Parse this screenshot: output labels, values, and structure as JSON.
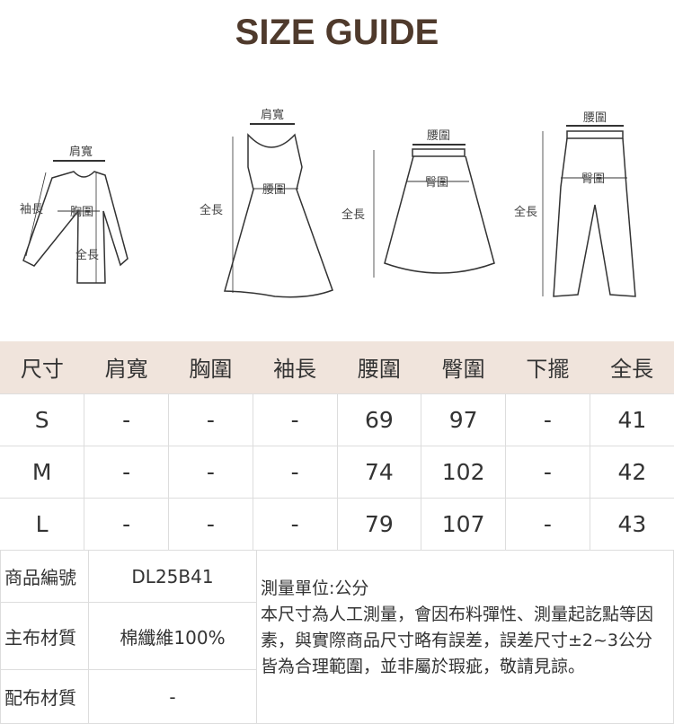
{
  "title": "SIZE GUIDE",
  "diagram": {
    "top": {
      "shoulder": "肩寬",
      "sleeve": "袖長",
      "chest": "胸圍",
      "length": "全長"
    },
    "dress": {
      "shoulder": "肩寬",
      "waist": "腰圍",
      "length": "全長"
    },
    "skirt": {
      "waist": "腰圍",
      "hip": "臀圍",
      "length": "全長"
    },
    "pants": {
      "waist": "腰圍",
      "hip": "臀圍",
      "length": "全長"
    }
  },
  "size_table": {
    "headers": [
      "尺寸",
      "肩寬",
      "胸圍",
      "袖長",
      "腰圍",
      "臀圍",
      "下擺",
      "全長"
    ],
    "rows": [
      [
        "S",
        "-",
        "-",
        "-",
        "69",
        "97",
        "-",
        "41"
      ],
      [
        "M",
        "-",
        "-",
        "-",
        "74",
        "102",
        "-",
        "42"
      ],
      [
        "L",
        "-",
        "-",
        "-",
        "79",
        "107",
        "-",
        "43"
      ]
    ]
  },
  "info": {
    "product_code_label": "商品編號",
    "product_code": "DL25B41",
    "main_fabric_label": "主布材質",
    "main_fabric": "棉纖維100%",
    "sub_fabric_label": "配布材質",
    "sub_fabric": "-",
    "unit_note": "測量單位:公分",
    "disclaimer": "本尺寸為人工測量，會因布料彈性、測量起訖點等因素，與實際商品尺寸略有誤差，誤差尺寸±2~3公分皆為合理範圍，並非屬於瑕疵，敬請見諒。"
  },
  "colors": {
    "title": "#4f3a2c",
    "header_bg": "#f0e4dc",
    "border": "#dddddd"
  }
}
